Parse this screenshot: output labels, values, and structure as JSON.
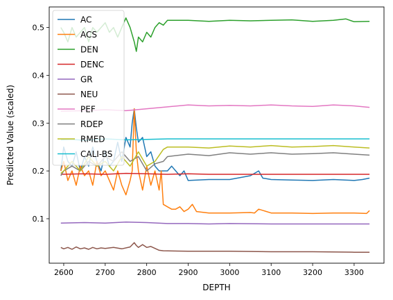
{
  "chart_data": {
    "type": "line",
    "title": "",
    "xlabel": "DEPTH",
    "ylabel": "Predicted Value (scaled)",
    "xlim": [
      2565,
      3372
    ],
    "ylim": [
      0.007,
      0.543
    ],
    "xticks": [
      2600,
      2700,
      2800,
      2900,
      3000,
      3100,
      3200,
      3300
    ],
    "yticks": [
      0.1,
      0.2,
      0.3,
      0.4,
      0.5
    ],
    "ytick_labels": [
      "0.1",
      "0.2",
      "0.3",
      "0.4",
      "0.5"
    ],
    "grid": false,
    "legend_position": "top-left",
    "x_range": [
      2593,
      3337
    ],
    "series": [
      {
        "name": "AC",
        "color": "#1f77b4",
        "x": [
          2593,
          2600,
          2610,
          2620,
          2630,
          2640,
          2650,
          2660,
          2670,
          2680,
          2690,
          2700,
          2710,
          2720,
          2730,
          2740,
          2750,
          2760,
          2765,
          2770,
          2775,
          2780,
          2790,
          2800,
          2810,
          2820,
          2830,
          2840,
          2850,
          2860,
          2870,
          2880,
          2890,
          2900,
          2950,
          3000,
          3050,
          3070,
          3080,
          3100,
          3150,
          3200,
          3250,
          3300,
          3320,
          3337
        ],
        "y": [
          0.2,
          0.25,
          0.22,
          0.21,
          0.24,
          0.2,
          0.23,
          0.21,
          0.25,
          0.22,
          0.2,
          0.24,
          0.21,
          0.22,
          0.26,
          0.22,
          0.27,
          0.25,
          0.3,
          0.33,
          0.29,
          0.26,
          0.27,
          0.23,
          0.24,
          0.21,
          0.2,
          0.2,
          0.2,
          0.21,
          0.2,
          0.19,
          0.2,
          0.18,
          0.182,
          0.182,
          0.19,
          0.2,
          0.185,
          0.182,
          0.181,
          0.18,
          0.182,
          0.18,
          0.182,
          0.185
        ]
      },
      {
        "name": "ACS",
        "color": "#ff7f0e",
        "x": [
          2593,
          2600,
          2610,
          2620,
          2630,
          2640,
          2650,
          2660,
          2670,
          2680,
          2690,
          2700,
          2710,
          2720,
          2730,
          2740,
          2750,
          2760,
          2765,
          2770,
          2775,
          2780,
          2790,
          2800,
          2810,
          2820,
          2830,
          2835,
          2840,
          2850,
          2860,
          2870,
          2880,
          2890,
          2900,
          2910,
          2920,
          2950,
          3000,
          3050,
          3060,
          3070,
          3100,
          3150,
          3200,
          3250,
          3300,
          3330,
          3337
        ],
        "y": [
          0.2,
          0.22,
          0.18,
          0.2,
          0.17,
          0.21,
          0.19,
          0.2,
          0.17,
          0.22,
          0.19,
          0.2,
          0.18,
          0.16,
          0.2,
          0.17,
          0.15,
          0.18,
          0.2,
          0.33,
          0.24,
          0.2,
          0.16,
          0.21,
          0.17,
          0.2,
          0.16,
          0.2,
          0.13,
          0.125,
          0.12,
          0.12,
          0.125,
          0.115,
          0.12,
          0.13,
          0.115,
          0.112,
          0.112,
          0.113,
          0.112,
          0.12,
          0.112,
          0.112,
          0.111,
          0.112,
          0.112,
          0.111,
          0.117
        ]
      },
      {
        "name": "DEN",
        "color": "#2ca02c",
        "x": [
          2593,
          2600,
          2610,
          2620,
          2630,
          2640,
          2650,
          2660,
          2670,
          2680,
          2690,
          2700,
          2710,
          2720,
          2730,
          2740,
          2750,
          2760,
          2770,
          2775,
          2780,
          2790,
          2800,
          2810,
          2820,
          2830,
          2840,
          2850,
          2900,
          2950,
          3000,
          3050,
          3100,
          3150,
          3200,
          3250,
          3280,
          3300,
          3337
        ],
        "y": [
          0.5,
          0.49,
          0.47,
          0.5,
          0.48,
          0.49,
          0.5,
          0.47,
          0.5,
          0.49,
          0.5,
          0.51,
          0.49,
          0.5,
          0.48,
          0.5,
          0.52,
          0.5,
          0.47,
          0.45,
          0.48,
          0.47,
          0.49,
          0.48,
          0.5,
          0.51,
          0.505,
          0.515,
          0.515,
          0.513,
          0.515,
          0.514,
          0.515,
          0.516,
          0.513,
          0.515,
          0.518,
          0.512,
          0.513
        ]
      },
      {
        "name": "DENC",
        "color": "#d62728",
        "x": [
          2593,
          2650,
          2700,
          2750,
          2800,
          2850,
          2900,
          2950,
          3000,
          3100,
          3200,
          3300,
          3337
        ],
        "y": [
          0.193,
          0.194,
          0.193,
          0.195,
          0.194,
          0.193,
          0.194,
          0.193,
          0.193,
          0.193,
          0.193,
          0.193,
          0.193
        ]
      },
      {
        "name": "GR",
        "color": "#9467bd",
        "x": [
          2593,
          2650,
          2700,
          2750,
          2800,
          2850,
          2900,
          2950,
          3000,
          3100,
          3200,
          3300,
          3337
        ],
        "y": [
          0.091,
          0.092,
          0.091,
          0.093,
          0.092,
          0.09,
          0.09,
          0.089,
          0.09,
          0.089,
          0.089,
          0.089,
          0.089
        ]
      },
      {
        "name": "NEU",
        "color": "#8c564b",
        "x": [
          2593,
          2600,
          2610,
          2620,
          2630,
          2640,
          2650,
          2660,
          2670,
          2680,
          2690,
          2700,
          2720,
          2740,
          2760,
          2770,
          2775,
          2780,
          2790,
          2800,
          2810,
          2820,
          2830,
          2840,
          2900,
          3000,
          3100,
          3200,
          3300,
          3337
        ],
        "y": [
          0.04,
          0.037,
          0.04,
          0.036,
          0.041,
          0.037,
          0.039,
          0.036,
          0.04,
          0.037,
          0.039,
          0.038,
          0.04,
          0.037,
          0.041,
          0.05,
          0.044,
          0.04,
          0.046,
          0.04,
          0.042,
          0.038,
          0.034,
          0.033,
          0.032,
          0.032,
          0.031,
          0.031,
          0.03,
          0.03
        ]
      },
      {
        "name": "PEF",
        "color": "#e377c2",
        "x": [
          2593,
          2650,
          2700,
          2750,
          2800,
          2850,
          2900,
          2950,
          3000,
          3050,
          3100,
          3150,
          3200,
          3250,
          3300,
          3337
        ],
        "y": [
          0.325,
          0.326,
          0.328,
          0.326,
          0.33,
          0.334,
          0.338,
          0.336,
          0.337,
          0.336,
          0.338,
          0.336,
          0.335,
          0.338,
          0.336,
          0.333
        ]
      },
      {
        "name": "RDEP",
        "color": "#7f7f7f",
        "x": [
          2593,
          2600,
          2620,
          2640,
          2660,
          2680,
          2700,
          2720,
          2740,
          2760,
          2780,
          2800,
          2820,
          2840,
          2850,
          2900,
          2950,
          3000,
          3050,
          3100,
          3150,
          3200,
          3250,
          3300,
          3337
        ],
        "y": [
          0.19,
          0.2,
          0.21,
          0.2,
          0.22,
          0.21,
          0.23,
          0.22,
          0.24,
          0.22,
          0.23,
          0.2,
          0.215,
          0.22,
          0.23,
          0.235,
          0.232,
          0.238,
          0.235,
          0.238,
          0.235,
          0.236,
          0.238,
          0.235,
          0.233
        ]
      },
      {
        "name": "RMED",
        "color": "#bcbd22",
        "x": [
          2593,
          2600,
          2620,
          2640,
          2660,
          2680,
          2700,
          2720,
          2740,
          2760,
          2780,
          2800,
          2820,
          2840,
          2850,
          2900,
          2950,
          3000,
          3050,
          3100,
          3150,
          3200,
          3250,
          3300,
          3337
        ],
        "y": [
          0.195,
          0.2,
          0.22,
          0.2,
          0.23,
          0.21,
          0.22,
          0.2,
          0.23,
          0.21,
          0.24,
          0.21,
          0.22,
          0.245,
          0.25,
          0.25,
          0.248,
          0.252,
          0.25,
          0.253,
          0.25,
          0.251,
          0.253,
          0.25,
          0.248
        ]
      },
      {
        "name": "CALI-BS",
        "color": "#17becf",
        "x": [
          2593,
          2620,
          2650,
          2700,
          2750,
          2800,
          2850,
          2900,
          3000,
          3100,
          3200,
          3300,
          3337
        ],
        "y": [
          0.265,
          0.266,
          0.264,
          0.267,
          0.265,
          0.266,
          0.267,
          0.267,
          0.267,
          0.267,
          0.267,
          0.267,
          0.267
        ]
      }
    ]
  }
}
